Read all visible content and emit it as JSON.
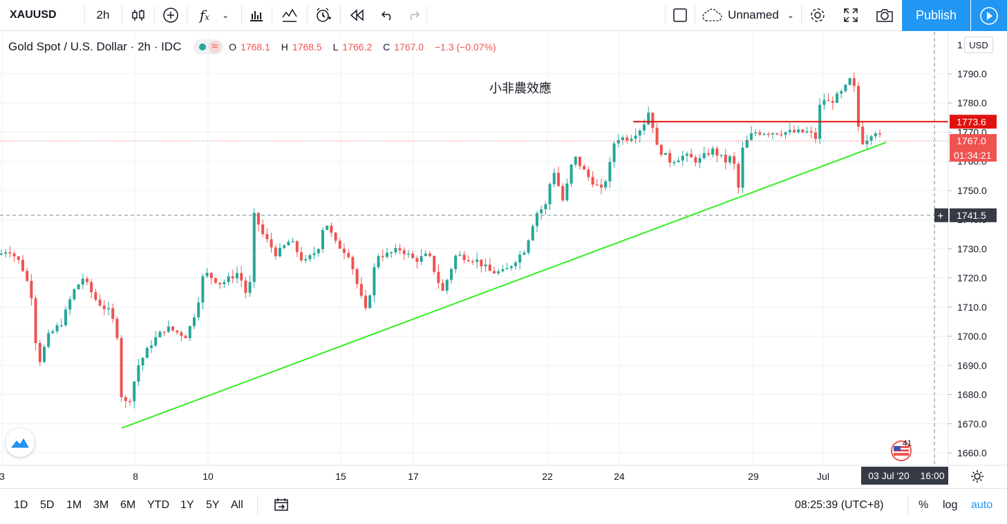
{
  "toolbar": {
    "symbol": "XAUUSD",
    "interval": "2h",
    "layout_name": "Unnamed",
    "publish_label": "Publish"
  },
  "legend": {
    "title": "Gold Spot / U.S. Dollar · 2h · IDC",
    "open_key": "O",
    "open": "1768.1",
    "high_key": "H",
    "high": "1768.5",
    "low_key": "L",
    "low": "1766.2",
    "close_key": "C",
    "close": "1767.0",
    "change": "−1.3 (−0.07%)",
    "currency": "USD"
  },
  "annotation": "小非農效應",
  "price_axis": {
    "ticks": [
      "1790.0",
      "1780.0",
      "1770.0",
      "1760.0",
      "1750.0",
      "1740.0",
      "1730.0",
      "1720.0",
      "1710.0",
      "1700.0",
      "1690.0",
      "1680.0",
      "1670.0",
      "1660.0"
    ],
    "top_partial": "1",
    "resistance_label": "1773.6",
    "last_price_label": "1767.0",
    "countdown": "01:34:21",
    "crosshair_price": "1741.5"
  },
  "time_axis": {
    "labels": [
      "3",
      "8",
      "10",
      "15",
      "17",
      "22",
      "24",
      "29",
      "Jul"
    ],
    "crosshair_date": "03 Jul '20",
    "crosshair_time": "16:00"
  },
  "bottom": {
    "ranges": [
      "1D",
      "5D",
      "1M",
      "3M",
      "6M",
      "YTD",
      "1Y",
      "5Y",
      "All"
    ],
    "clock": "08:25:39 (UTC+8)",
    "percent": "%",
    "log": "log",
    "auto": "auto"
  },
  "events": {
    "count": "41"
  },
  "colors": {
    "up": "#26a69a",
    "down": "#ef5350",
    "trendline": "#33ee22",
    "resistance": "#e0120f",
    "accent": "#2196f3"
  },
  "chart_data": {
    "type": "candlestick",
    "symbol": "XAUUSD",
    "interval": "2h",
    "ylim": [
      1656,
      1800
    ],
    "resistance_level": 1773.6,
    "last_price": 1767.0,
    "trendline": {
      "from": {
        "date": "2020-06-05",
        "price": 1668.5
      },
      "to": {
        "date": "2020-07-03",
        "price": 1766.5
      }
    },
    "price_path": [
      [
        0,
        1728
      ],
      [
        12,
        1730
      ],
      [
        30,
        1725
      ],
      [
        45,
        1715
      ],
      [
        55,
        1690
      ],
      [
        70,
        1700
      ],
      [
        90,
        1705
      ],
      [
        105,
        1715
      ],
      [
        120,
        1720
      ],
      [
        140,
        1712
      ],
      [
        160,
        1708
      ],
      [
        170,
        1700
      ],
      [
        175,
        1680
      ],
      [
        185,
        1676
      ],
      [
        200,
        1690
      ],
      [
        220,
        1698
      ],
      [
        240,
        1703
      ],
      [
        270,
        1700
      ],
      [
        285,
        1710
      ],
      [
        295,
        1722
      ],
      [
        320,
        1718
      ],
      [
        345,
        1722
      ],
      [
        360,
        1712
      ],
      [
        368,
        1742
      ],
      [
        380,
        1735
      ],
      [
        400,
        1728
      ],
      [
        420,
        1733
      ],
      [
        440,
        1725
      ],
      [
        460,
        1730
      ],
      [
        470,
        1740
      ],
      [
        485,
        1732
      ],
      [
        505,
        1728
      ],
      [
        520,
        1715
      ],
      [
        530,
        1708
      ],
      [
        545,
        1728
      ],
      [
        560,
        1728
      ],
      [
        580,
        1730
      ],
      [
        600,
        1726
      ],
      [
        620,
        1728
      ],
      [
        640,
        1715
      ],
      [
        660,
        1728
      ],
      [
        690,
        1726
      ],
      [
        710,
        1722
      ],
      [
        730,
        1722
      ],
      [
        760,
        1730
      ],
      [
        775,
        1742
      ],
      [
        790,
        1745
      ],
      [
        800,
        1758
      ],
      [
        815,
        1746
      ],
      [
        830,
        1762
      ],
      [
        850,
        1755
      ],
      [
        870,
        1750
      ],
      [
        880,
        1756
      ],
      [
        890,
        1768
      ],
      [
        910,
        1768
      ],
      [
        930,
        1772
      ],
      [
        940,
        1778
      ],
      [
        950,
        1765
      ],
      [
        970,
        1760
      ],
      [
        990,
        1762
      ],
      [
        1010,
        1760
      ],
      [
        1030,
        1764
      ],
      [
        1050,
        1760
      ],
      [
        1060,
        1762
      ],
      [
        1068,
        1750
      ],
      [
        1075,
        1765
      ],
      [
        1090,
        1770
      ],
      [
        1110,
        1770
      ],
      [
        1130,
        1770
      ],
      [
        1150,
        1770
      ],
      [
        1170,
        1770
      ],
      [
        1180,
        1768
      ],
      [
        1188,
        1782
      ],
      [
        1200,
        1780
      ],
      [
        1220,
        1784
      ],
      [
        1230,
        1788
      ],
      [
        1238,
        1784
      ],
      [
        1244,
        1766
      ],
      [
        1255,
        1768
      ],
      [
        1265,
        1771
      ],
      [
        1278,
        1767
      ]
    ]
  }
}
